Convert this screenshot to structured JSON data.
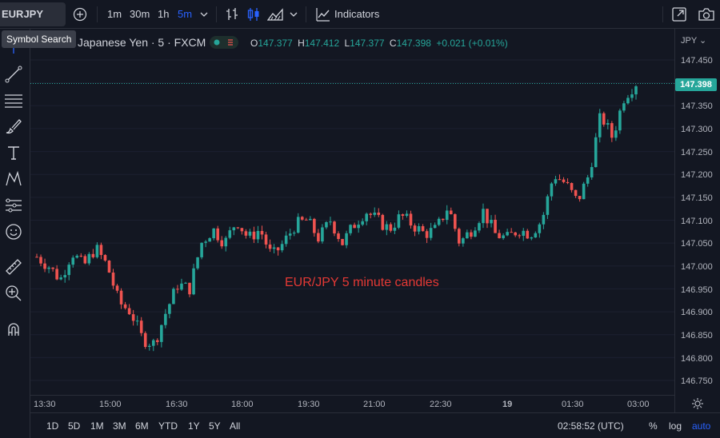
{
  "toolbar": {
    "symbol": "EURJPY",
    "intervals": [
      "1m",
      "30m",
      "1h",
      "5m"
    ],
    "active_interval": "5m",
    "indicators_label": "Indicators"
  },
  "tooltip": "Symbol Search",
  "legend": {
    "title": "Japanese Yen · 5 · FXCM",
    "o_key": "O",
    "o_val": "147.377",
    "h_key": "H",
    "h_val": "147.412",
    "l_key": "L",
    "l_val": "147.377",
    "c_key": "C",
    "c_val": "147.398",
    "change": "+0.021 (+0.01%)"
  },
  "price_axis": {
    "currency": "JPY",
    "ticks": [
      "147.450",
      "147.398",
      "147.350",
      "147.300",
      "147.250",
      "147.200",
      "147.150",
      "147.100",
      "147.050",
      "147.000",
      "146.950",
      "146.900",
      "146.850",
      "146.800",
      "146.750"
    ],
    "last_price": "147.398"
  },
  "time_axis": [
    "13:30",
    "15:00",
    "16:30",
    "18:00",
    "19:30",
    "21:00",
    "22:30",
    "19",
    "01:30",
    "03:00"
  ],
  "annotation": "EUR/JPY 5 minute candles",
  "bottom": {
    "ranges": [
      "1D",
      "5D",
      "1M",
      "3M",
      "6M",
      "YTD",
      "1Y",
      "5Y",
      "All"
    ],
    "clock": "02:58:52 (UTC)",
    "percent": "%",
    "log": "log",
    "auto": "auto"
  },
  "colors": {
    "up": "#26a69a",
    "down": "#ef5350",
    "accent": "#2962ff",
    "annotation": "#e53935"
  },
  "chart_data": {
    "type": "candlestick",
    "symbol": "EUR/JPY",
    "interval": "5",
    "ylim": [
      146.75,
      147.45
    ],
    "close_path": [
      147.02,
      147.0,
      146.97,
      147.03,
      147.0,
      147.04,
      147.0,
      146.92,
      146.9,
      146.84,
      146.83,
      146.9,
      146.96,
      146.95,
      147.05,
      147.08,
      147.05,
      147.1,
      147.06,
      147.08,
      147.02,
      147.05,
      147.09,
      147.1,
      147.06,
      147.1,
      147.05,
      147.09,
      147.12,
      147.1,
      147.08,
      147.11,
      147.09,
      147.07,
      147.08,
      147.13,
      147.05,
      147.08,
      147.12,
      147.07,
      147.06,
      147.08,
      147.07,
      147.1,
      147.2,
      147.18,
      147.14,
      147.2,
      147.33,
      147.28,
      147.37,
      147.4
    ]
  }
}
